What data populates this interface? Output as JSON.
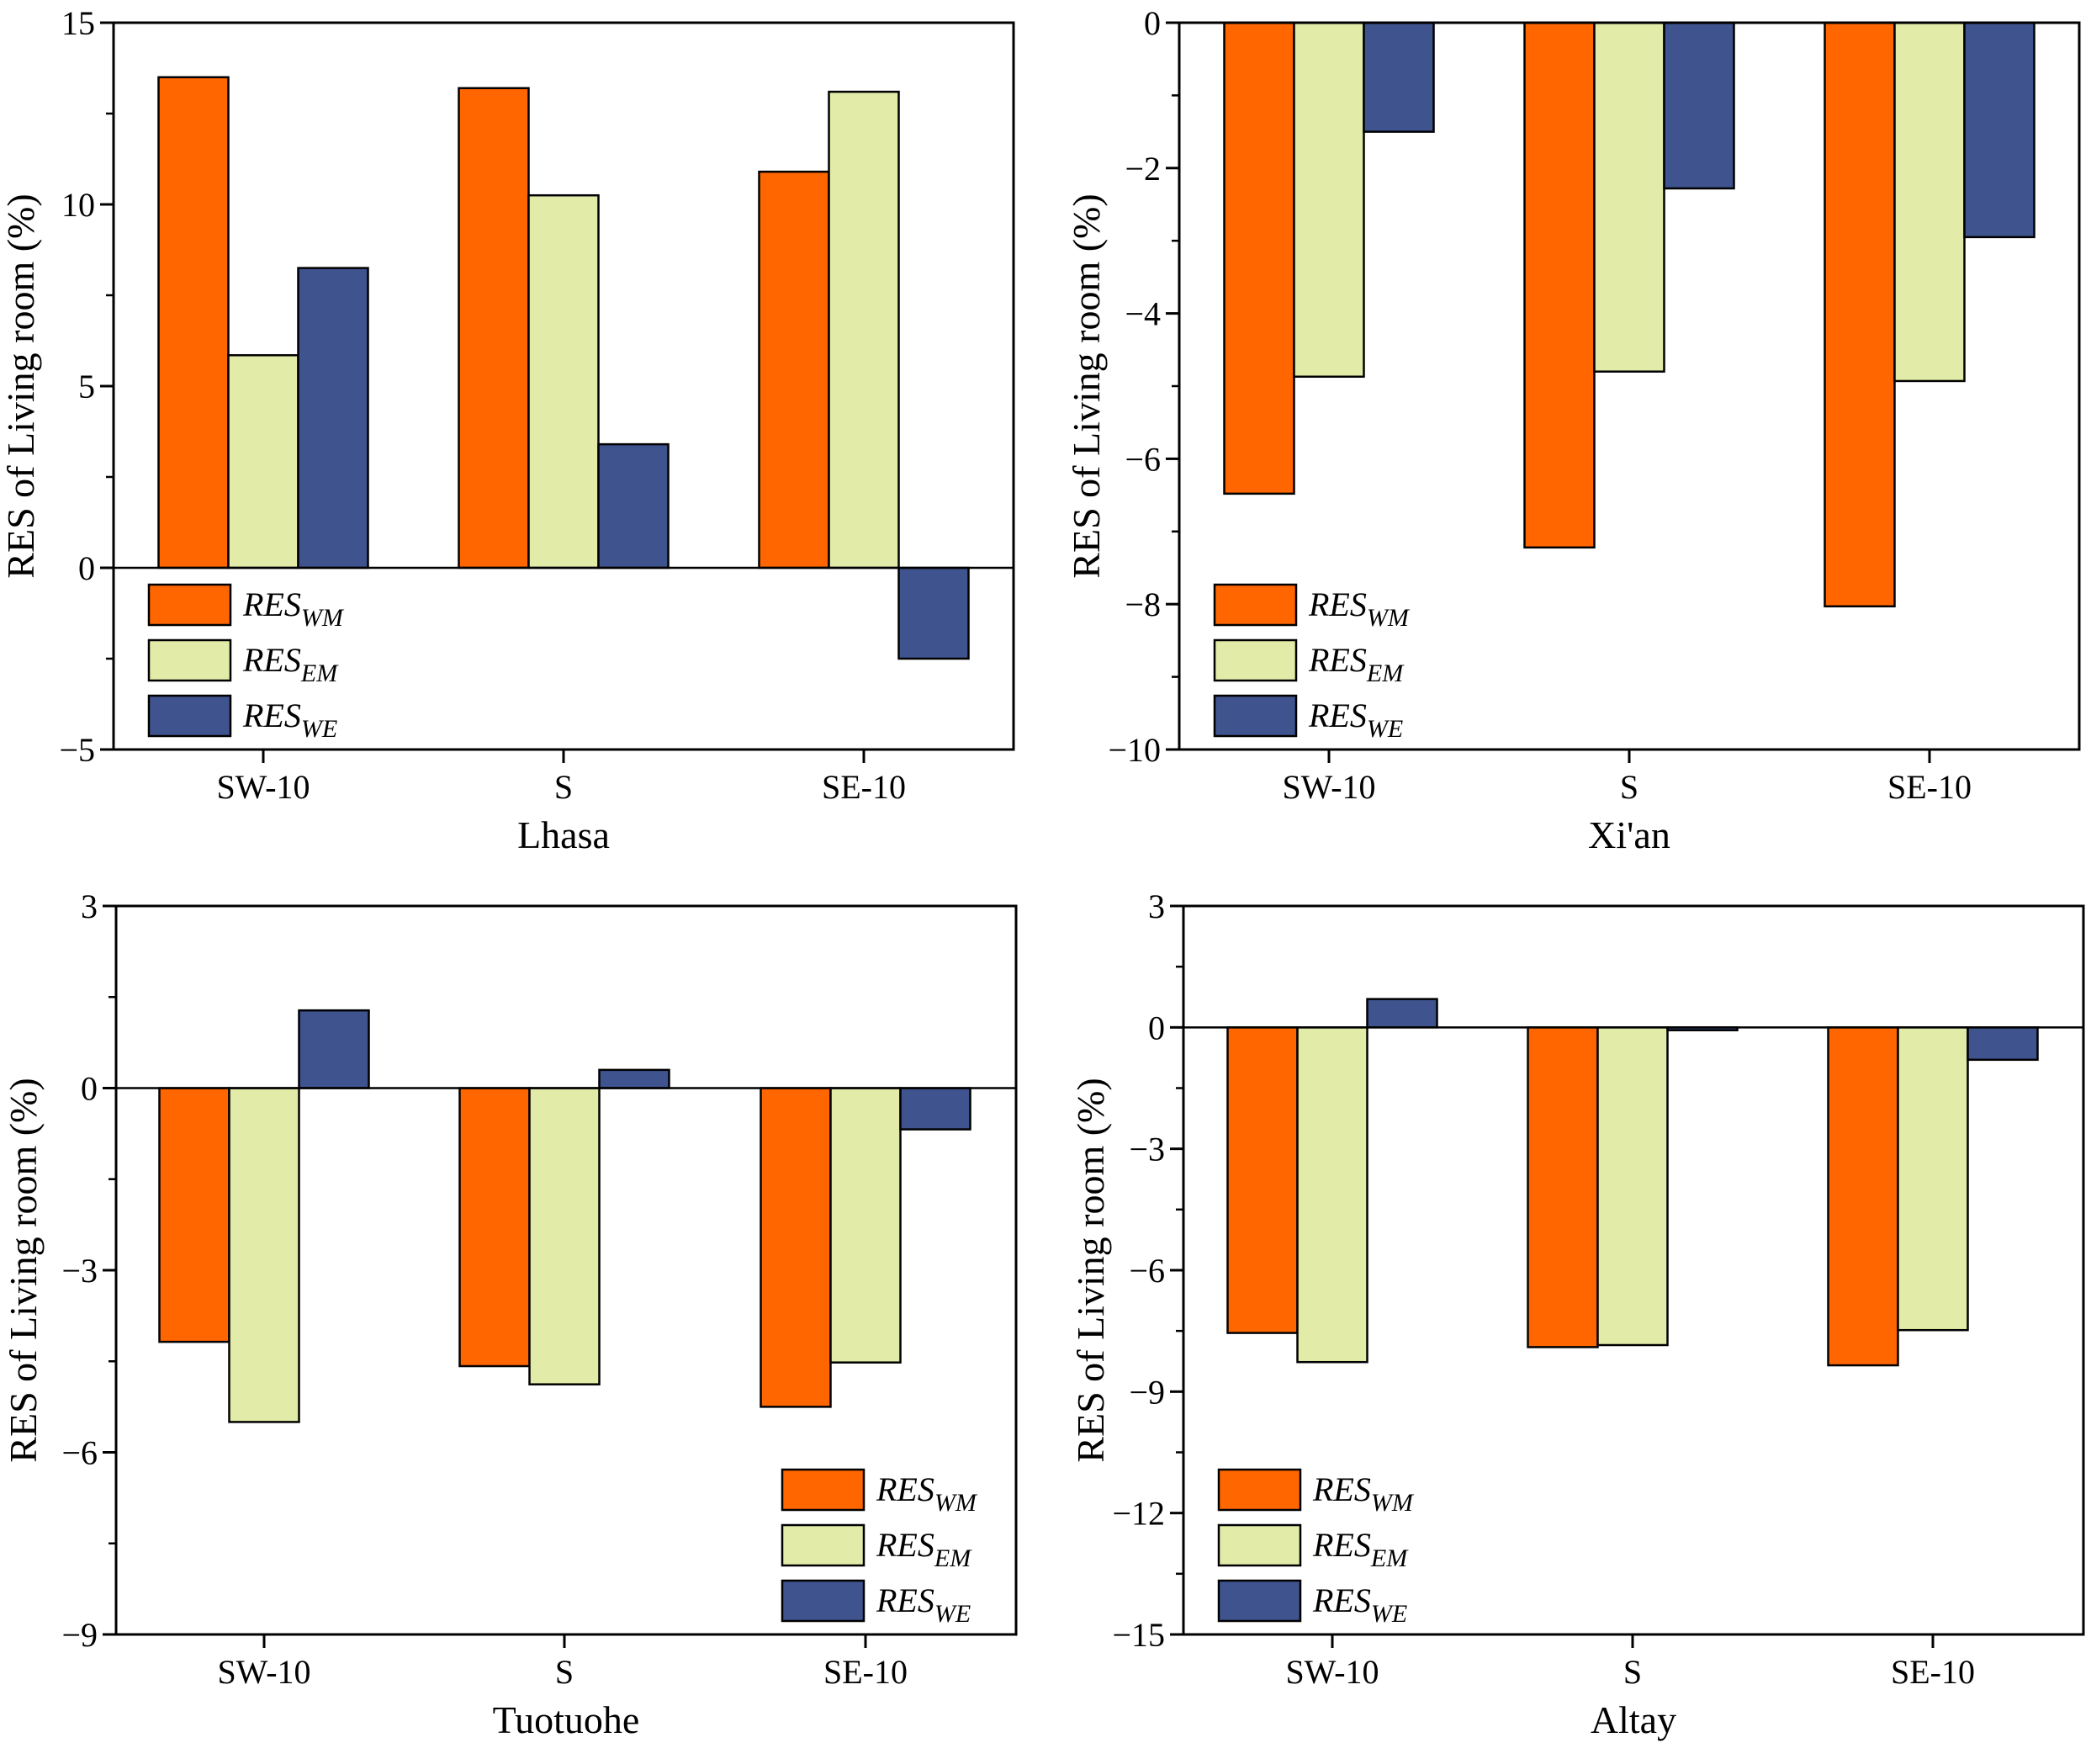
{
  "figure": {
    "colors": {
      "WM": "#ff6600",
      "EM": "#e2eba7",
      "WE": "#3f538e",
      "axis": "#000000",
      "background": "#ffffff"
    }
  },
  "chart_data": [
    {
      "type": "bar",
      "title": "Lhasa",
      "xlabel": "Lhasa",
      "ylabel": "RES of Living room (%)",
      "categories": [
        "SW-10",
        "S",
        "SE-10"
      ],
      "ylim": [
        -5,
        15
      ],
      "yticks": [
        -5,
        0,
        5,
        10,
        15
      ],
      "ytick_labels": [
        "−5",
        "0",
        "5",
        "10",
        "15"
      ],
      "legend_position": "bottom-left",
      "series": [
        {
          "key": "WM",
          "name": "RES",
          "sub": "WM",
          "values": [
            13.5,
            13.2,
            10.9
          ]
        },
        {
          "key": "EM",
          "name": "RES",
          "sub": "EM",
          "values": [
            5.85,
            10.25,
            13.1
          ]
        },
        {
          "key": "WE",
          "name": "RES",
          "sub": "WE",
          "values": [
            8.25,
            3.4,
            -2.5
          ]
        }
      ]
    },
    {
      "type": "bar",
      "title": "Xi'an",
      "xlabel": "Xi'an",
      "ylabel": "RES of Living room (%)",
      "categories": [
        "SW-10",
        "S",
        "SE-10"
      ],
      "ylim": [
        -10,
        0
      ],
      "yticks": [
        -10,
        -8,
        -6,
        -4,
        -2,
        0
      ],
      "ytick_labels": [
        "−10",
        "−8",
        "−6",
        "−4",
        "−2",
        "0"
      ],
      "legend_position": "bottom-left",
      "series": [
        {
          "key": "WM",
          "name": "RES",
          "sub": "WM",
          "values": [
            -6.48,
            -7.22,
            -8.03
          ]
        },
        {
          "key": "EM",
          "name": "RES",
          "sub": "EM",
          "values": [
            -4.87,
            -4.8,
            -4.93
          ]
        },
        {
          "key": "WE",
          "name": "RES",
          "sub": "WE",
          "values": [
            -1.5,
            -2.28,
            -2.95
          ]
        }
      ]
    },
    {
      "type": "bar",
      "title": "Tuotuohe",
      "xlabel": "Tuotuohe",
      "ylabel": "RES of Living room (%)",
      "categories": [
        "SW-10",
        "S",
        "SE-10"
      ],
      "ylim": [
        -9,
        3
      ],
      "yticks": [
        -9,
        -6,
        -3,
        0,
        3
      ],
      "ytick_labels": [
        "−9",
        "−6",
        "−3",
        "0",
        "3"
      ],
      "legend_position": "bottom-right",
      "series": [
        {
          "key": "WM",
          "name": "RES",
          "sub": "WM",
          "values": [
            -4.18,
            -4.58,
            -5.25
          ]
        },
        {
          "key": "EM",
          "name": "RES",
          "sub": "EM",
          "values": [
            -5.5,
            -4.88,
            -4.52
          ]
        },
        {
          "key": "WE",
          "name": "RES",
          "sub": "WE",
          "values": [
            1.28,
            0.3,
            -0.68
          ]
        }
      ]
    },
    {
      "type": "bar",
      "title": "Altay",
      "xlabel": "Altay",
      "ylabel": "RES of Living room (%)",
      "categories": [
        "SW-10",
        "S",
        "SE-10"
      ],
      "ylim": [
        -15,
        3
      ],
      "yticks": [
        -15,
        -12,
        -9,
        -6,
        -3,
        0,
        3
      ],
      "ytick_labels": [
        "−15",
        "−12",
        "−9",
        "−6",
        "−3",
        "0",
        "3"
      ],
      "legend_position": "bottom-left",
      "series": [
        {
          "key": "WM",
          "name": "RES",
          "sub": "WM",
          "values": [
            -7.55,
            -7.9,
            -8.35
          ]
        },
        {
          "key": "EM",
          "name": "RES",
          "sub": "EM",
          "values": [
            -8.27,
            -7.85,
            -7.48
          ]
        },
        {
          "key": "WE",
          "name": "RES",
          "sub": "WE",
          "values": [
            0.7,
            -0.07,
            -0.8
          ]
        }
      ]
    }
  ]
}
